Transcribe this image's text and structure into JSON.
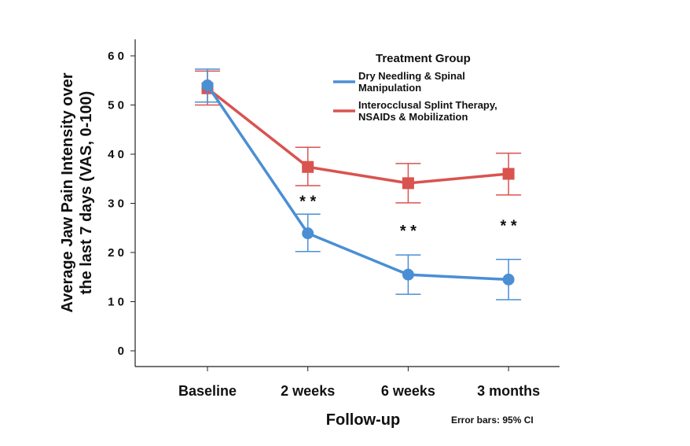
{
  "chart_data": {
    "type": "line",
    "title": "",
    "xlabel": "Follow-up",
    "ylabel": "Average Jaw Pain Intensity over the last 7 days (VAS, 0-100)",
    "ylabel_lines": [
      "Average Jaw Pain Intensity over",
      "the last 7 days (VAS, 0-100)"
    ],
    "categories": [
      "Baseline",
      "2 weeks",
      "6 weeks",
      "3 months"
    ],
    "ylim": [
      0,
      60
    ],
    "yticks": [
      0,
      10,
      20,
      30,
      40,
      50,
      60
    ],
    "ytick_labels": [
      "0",
      "1 0",
      "2 0",
      "3 0",
      "4 0",
      "5 0",
      "6 0"
    ],
    "grid": false,
    "legend": {
      "title": "Treatment Group",
      "placement": "top-right"
    },
    "series": [
      {
        "name": "Dry Needling & Spinal Manipulation",
        "name_lines": [
          "Dry Needling & Spinal",
          "Manipulation"
        ],
        "color": "#4a8fd4",
        "marker": "circle",
        "values": [
          54.0,
          23.9,
          15.5,
          14.5
        ],
        "ci_low": [
          50.6,
          20.2,
          11.5,
          10.4
        ],
        "ci_high": [
          57.3,
          27.8,
          19.5,
          18.6
        ]
      },
      {
        "name": "Interocclusal Splint Therapy, NSAIDs & Mobilization",
        "name_lines": [
          "Interocclusal Splint Therapy,",
          "NSAIDs & Mobilization"
        ],
        "color": "#d9534f",
        "marker": "square",
        "values": [
          53.4,
          37.4,
          34.1,
          36.0
        ],
        "ci_low": [
          50.0,
          33.6,
          30.1,
          31.7
        ],
        "ci_high": [
          56.9,
          41.4,
          38.1,
          40.2
        ]
      }
    ],
    "annotations": [
      {
        "category": "2 weeks",
        "text": "* *",
        "y": 31
      },
      {
        "category": "6 weeks",
        "text": "* *",
        "y": 25
      },
      {
        "category": "3 months",
        "text": "* *",
        "y": 26
      }
    ],
    "footnote": "Error bars: 95% CI"
  }
}
